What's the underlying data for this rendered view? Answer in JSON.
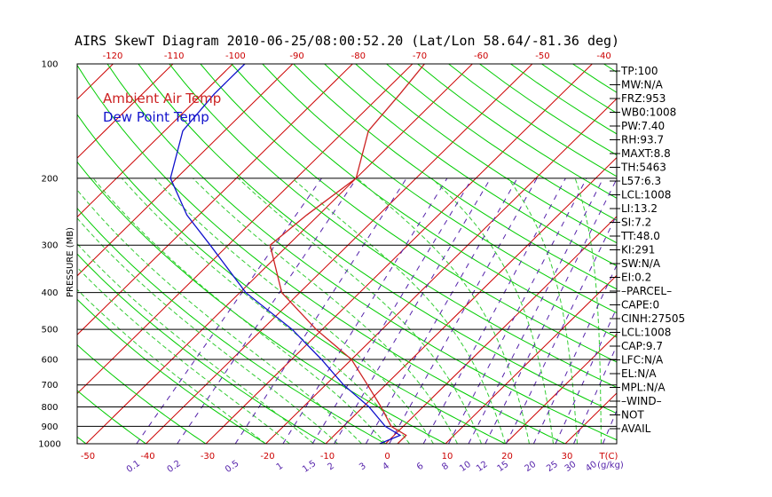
{
  "chart_data": {
    "type": "line",
    "title": "AIRS SkewT Diagram 2010-06-25/08:00:52.20 (Lat/Lon 58.64/-81.36 deg)",
    "ylabel": "PRESSURE (MB)",
    "xlabel": "T(C)",
    "mixing_unit": "(g/kg)",
    "pressure_ticks": [
      "100",
      "200",
      "300",
      "400",
      "500",
      "600",
      "700",
      "800",
      "900",
      "1000"
    ],
    "bottom_temp_ticks": [
      "-50",
      "-40",
      "-30",
      "-20",
      "-10",
      "0",
      "10",
      "20",
      "30"
    ],
    "top_temp_ticks": [
      "-120",
      "-110",
      "-100",
      "-90",
      "-80",
      "-70",
      "-60",
      "-50",
      "-40"
    ],
    "mixing_ratio_labels": [
      "0.1",
      "0.2",
      "0.5",
      "1",
      "1.5",
      "2",
      "3",
      "4",
      "6",
      "8",
      "10",
      "12",
      "15",
      "20",
      "25",
      "30",
      "40"
    ],
    "legend": [
      "Ambient Air Temp",
      "Dew Point Temp"
    ],
    "colors": {
      "temperature": "#cc2222",
      "dewpoint": "#1111cc",
      "isotherm": "#cc0000",
      "dry_adiabat": "#00cc00",
      "moist_adiabat": "#33cc33",
      "mixing_ratio": "#5522aa",
      "tick_labels": "#cc0000",
      "mixing_labels": "#5522aa"
    },
    "series": [
      {
        "name": "Ambient Air Temp",
        "points": [
          {
            "p": 1000,
            "t": 2
          },
          {
            "p": 950,
            "t": 2
          },
          {
            "p": 900,
            "t": -2
          },
          {
            "p": 800,
            "t": -7
          },
          {
            "p": 700,
            "t": -13
          },
          {
            "p": 600,
            "t": -20
          },
          {
            "p": 500,
            "t": -31
          },
          {
            "p": 400,
            "t": -43
          },
          {
            "p": 300,
            "t": -53
          },
          {
            "p": 250,
            "t": -52
          },
          {
            "p": 200,
            "t": -50
          },
          {
            "p": 150,
            "t": -56
          },
          {
            "p": 120,
            "t": -57
          },
          {
            "p": 100,
            "t": -58
          }
        ]
      },
      {
        "name": "Dew Point Temp",
        "points": [
          {
            "p": 1000,
            "t": -1
          },
          {
            "p": 950,
            "t": 1
          },
          {
            "p": 900,
            "t": -3
          },
          {
            "p": 800,
            "t": -9
          },
          {
            "p": 700,
            "t": -17
          },
          {
            "p": 600,
            "t": -25
          },
          {
            "p": 500,
            "t": -35
          },
          {
            "p": 400,
            "t": -49
          },
          {
            "p": 300,
            "t": -63
          },
          {
            "p": 250,
            "t": -72
          },
          {
            "p": 200,
            "t": -81
          },
          {
            "p": 150,
            "t": -87
          },
          {
            "p": 120,
            "t": -88
          },
          {
            "p": 100,
            "t": -88
          }
        ]
      }
    ],
    "grid": true
  },
  "indices": [
    "TP:100",
    "MW:N/A",
    "FRZ:953",
    "WB0:1008",
    "PW:7.40",
    "RH:93.7",
    "MAXT:8.8",
    "TH:5463",
    "L57:6.3",
    "LCL:1008",
    "LI:13.2",
    "SI:7.2",
    "TT:48.0",
    "KI:291",
    "SW:N/A",
    "EI:0.2",
    "–PARCEL–",
    "CAPE:0",
    "CINH:27505",
    "LCL:1008",
    "CAP:9.7",
    "LFC:N/A",
    "EL:N/A",
    "MPL:N/A",
    "–WIND–",
    "NOT",
    "AVAIL"
  ]
}
